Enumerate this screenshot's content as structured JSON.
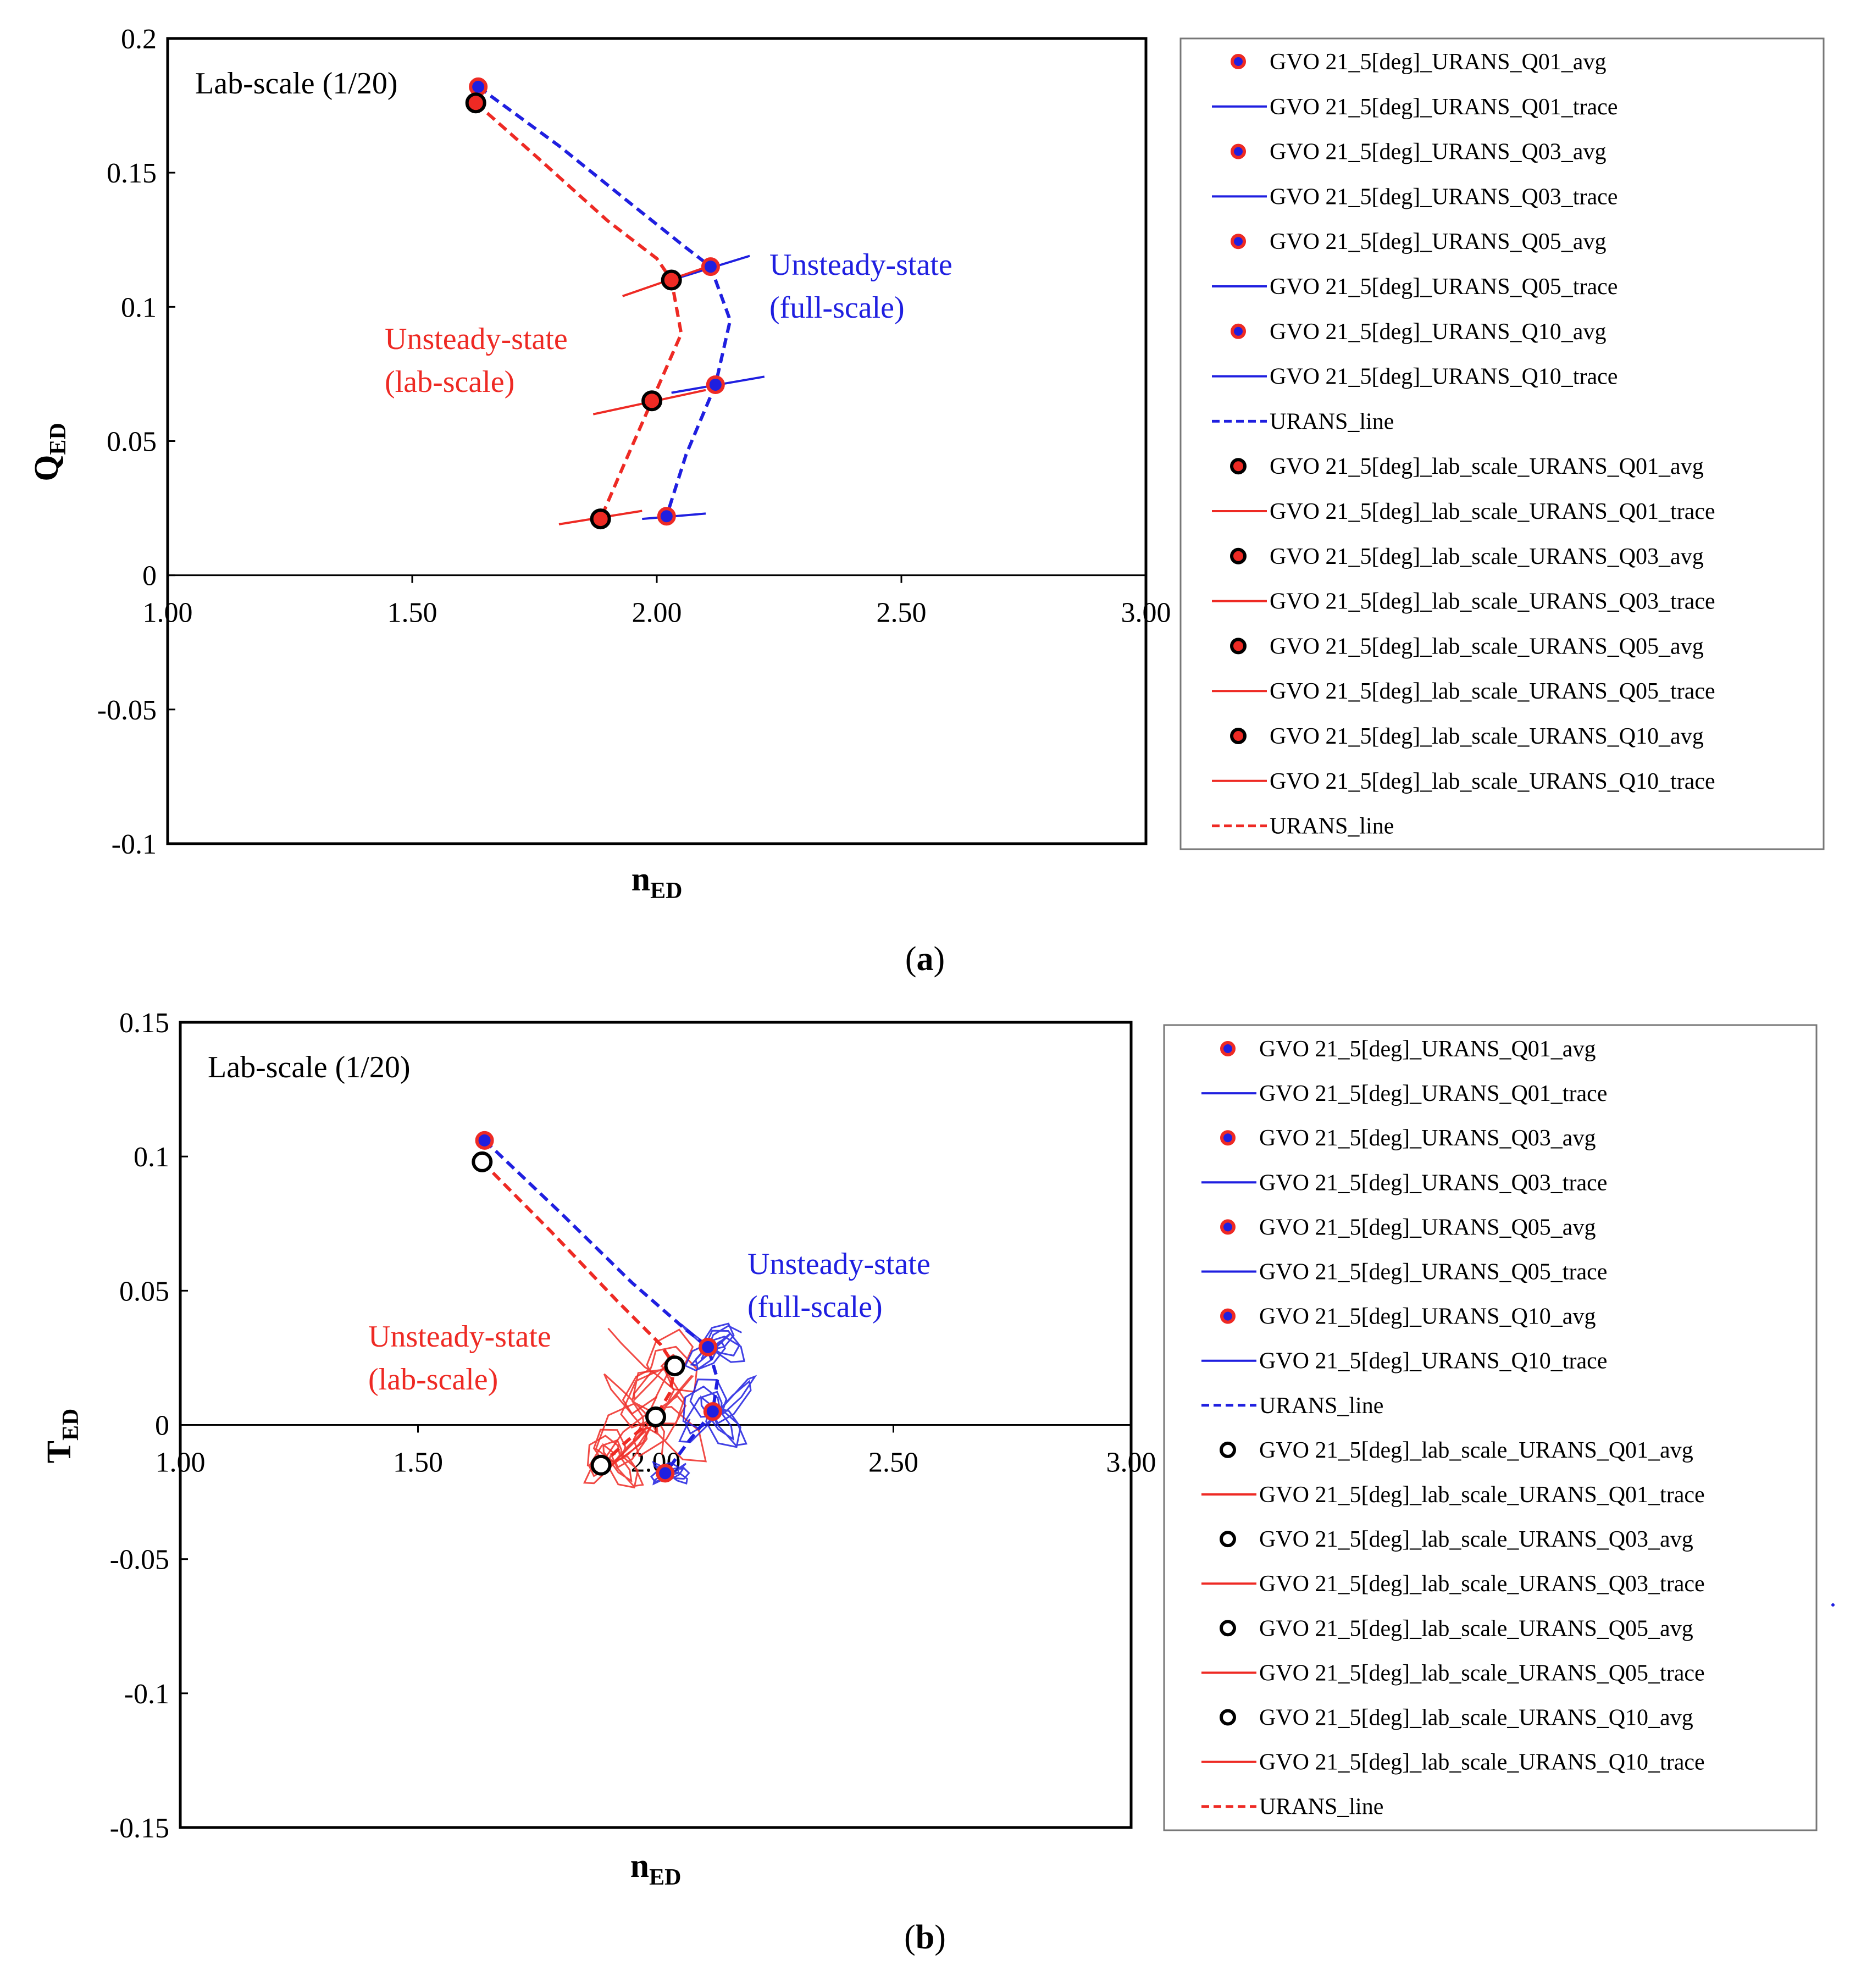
{
  "colors": {
    "full": "#1f1fe0",
    "lab": "#ee2a24",
    "avgFillFull": "#1f1fe0",
    "axis": "#000000"
  },
  "chart_data": [
    {
      "id": "a",
      "type": "line",
      "caption": "a",
      "xlabel": "n",
      "xlabel_sub": "ED",
      "ylabel": "Q",
      "ylabel_sub": "ED",
      "xlim": [
        1.0,
        3.0
      ],
      "ylim": [
        -0.1,
        0.2
      ],
      "xticks": [
        "1.00",
        "1.50",
        "2.00",
        "2.50",
        "3.00"
      ],
      "yticks": [
        "0.2",
        "0.15",
        "0.1",
        "0.05",
        "0",
        "-0.05",
        "-0.1"
      ],
      "corner_note": "Lab-scale (1/20)",
      "annotations": {
        "full": [
          "Unsteady-state",
          "(full-scale)"
        ],
        "lab": [
          "Unsteady-state",
          "(lab-scale)"
        ]
      },
      "full_avg": {
        "x": [
          1.635,
          2.11,
          2.12,
          2.02
        ],
        "y": [
          0.182,
          0.115,
          0.071,
          0.022
        ]
      },
      "lab_avg": {
        "x": [
          1.63,
          2.03,
          1.99,
          1.885
        ],
        "y": [
          0.176,
          0.11,
          0.065,
          0.021
        ]
      },
      "full_line": {
        "x": [
          1.635,
          1.8,
          1.95,
          2.06,
          2.11,
          2.15,
          2.12,
          2.06,
          2.02
        ],
        "y": [
          0.182,
          0.16,
          0.138,
          0.122,
          0.115,
          0.095,
          0.071,
          0.045,
          0.022
        ]
      },
      "lab_line": {
        "x": [
          1.63,
          1.76,
          1.9,
          2.0,
          2.03,
          2.05,
          1.99,
          1.93,
          1.885
        ],
        "y": [
          0.176,
          0.155,
          0.132,
          0.118,
          0.11,
          0.09,
          0.065,
          0.04,
          0.021
        ]
      },
      "full_traces": [
        {
          "x": [
            2.03,
            2.19
          ],
          "y": [
            0.11,
            0.119
          ]
        },
        {
          "x": [
            2.03,
            2.22
          ],
          "y": [
            0.068,
            0.074
          ]
        },
        {
          "x": [
            1.97,
            2.1
          ],
          "y": [
            0.021,
            0.023
          ]
        }
      ],
      "lab_traces": [
        {
          "x": [
            1.93,
            2.12
          ],
          "y": [
            0.104,
            0.116
          ]
        },
        {
          "x": [
            1.87,
            2.1
          ],
          "y": [
            0.06,
            0.069
          ]
        },
        {
          "x": [
            1.8,
            1.97
          ],
          "y": [
            0.019,
            0.024
          ]
        }
      ],
      "legend": [
        {
          "kind": "avg_full",
          "label": "GVO 21_5[deg]_URANS_Q01_avg"
        },
        {
          "kind": "trace_full",
          "label": "GVO 21_5[deg]_URANS_Q01_trace"
        },
        {
          "kind": "avg_full",
          "label": "GVO 21_5[deg]_URANS_Q03_avg"
        },
        {
          "kind": "trace_full",
          "label": "GVO 21_5[deg]_URANS_Q03_trace"
        },
        {
          "kind": "avg_full",
          "label": "GVO 21_5[deg]_URANS_Q05_avg"
        },
        {
          "kind": "trace_full",
          "label": "GVO 21_5[deg]_URANS_Q05_trace"
        },
        {
          "kind": "avg_full",
          "label": "GVO 21_5[deg]_URANS_Q10_avg"
        },
        {
          "kind": "trace_full",
          "label": "GVO 21_5[deg]_URANS_Q10_trace"
        },
        {
          "kind": "line_full",
          "label": "URANS_line"
        },
        {
          "kind": "avg_lab_filled",
          "label": "GVO 21_5[deg]_lab_scale_URANS_Q01_avg"
        },
        {
          "kind": "trace_lab",
          "label": "GVO 21_5[deg]_lab_scale_URANS_Q01_trace"
        },
        {
          "kind": "avg_lab_filled",
          "label": "GVO 21_5[deg]_lab_scale_URANS_Q03_avg"
        },
        {
          "kind": "trace_lab",
          "label": "GVO 21_5[deg]_lab_scale_URANS_Q03_trace"
        },
        {
          "kind": "avg_lab_filled",
          "label": "GVO 21_5[deg]_lab_scale_URANS_Q05_avg"
        },
        {
          "kind": "trace_lab",
          "label": "GVO 21_5[deg]_lab_scale_URANS_Q05_trace"
        },
        {
          "kind": "avg_lab_filled",
          "label": "GVO 21_5[deg]_lab_scale_URANS_Q10_avg"
        },
        {
          "kind": "trace_lab",
          "label": "GVO 21_5[deg]_lab_scale_URANS_Q10_trace"
        },
        {
          "kind": "line_lab",
          "label": "URANS_line"
        }
      ]
    },
    {
      "id": "b",
      "type": "line",
      "caption": "b",
      "xlabel": "n",
      "xlabel_sub": "ED",
      "ylabel": "T",
      "ylabel_sub": "ED",
      "xlim": [
        1.0,
        3.0
      ],
      "ylim": [
        -0.15,
        0.15
      ],
      "xticks": [
        "1.00",
        "1.50",
        "2.00",
        "2.50",
        "3.00"
      ],
      "yticks": [
        "0.15",
        "0.1",
        "0.05",
        "0",
        "-0.05",
        "-0.1",
        "-0.15"
      ],
      "corner_note": "Lab-scale (1/20)",
      "annotations": {
        "full": [
          "Unsteady-state",
          "(full-scale)"
        ],
        "lab": [
          "Unsteady-state",
          "(lab-scale)"
        ]
      },
      "full_avg": {
        "x": [
          1.64,
          2.11,
          2.12,
          2.02
        ],
        "y": [
          0.106,
          0.029,
          0.005,
          -0.018
        ]
      },
      "lab_avg": {
        "x": [
          1.635,
          2.04,
          2.0,
          1.885
        ],
        "y": [
          0.098,
          0.022,
          0.003,
          -0.015
        ]
      },
      "full_line": {
        "x": [
          1.64,
          1.8,
          1.95,
          2.06,
          2.11,
          2.13,
          2.12,
          2.07,
          2.02
        ],
        "y": [
          0.106,
          0.079,
          0.053,
          0.036,
          0.029,
          0.017,
          0.005,
          -0.006,
          -0.018
        ]
      },
      "lab_line": {
        "x": [
          1.635,
          1.78,
          1.92,
          2.01,
          2.04,
          2.03,
          2.0,
          1.94,
          1.885
        ],
        "y": [
          0.098,
          0.072,
          0.046,
          0.03,
          0.022,
          0.012,
          0.003,
          -0.006,
          -0.015
        ]
      },
      "full_traces": [
        {
          "cx": 2.12,
          "cy": 0.029,
          "rx": 0.07,
          "ry": 0.009
        },
        {
          "cx": 2.13,
          "cy": 0.005,
          "rx": 0.08,
          "ry": 0.014
        },
        {
          "cx": 2.03,
          "cy": -0.018,
          "rx": 0.04,
          "ry": 0.004
        }
      ],
      "lab_traces": [
        {
          "cx": 2.0,
          "cy": 0.02,
          "rx": 0.1,
          "ry": 0.016
        },
        {
          "cx": 1.99,
          "cy": 0.003,
          "rx": 0.12,
          "ry": 0.02
        },
        {
          "cx": 1.92,
          "cy": -0.012,
          "rx": 0.07,
          "ry": 0.012
        }
      ],
      "legend": [
        {
          "kind": "avg_full",
          "label": "GVO 21_5[deg]_URANS_Q01_avg"
        },
        {
          "kind": "trace_full",
          "label": "GVO 21_5[deg]_URANS_Q01_trace"
        },
        {
          "kind": "avg_full",
          "label": "GVO 21_5[deg]_URANS_Q03_avg"
        },
        {
          "kind": "trace_full",
          "label": "GVO 21_5[deg]_URANS_Q03_trace"
        },
        {
          "kind": "avg_full",
          "label": "GVO 21_5[deg]_URANS_Q05_avg"
        },
        {
          "kind": "trace_full",
          "label": "GVO 21_5[deg]_URANS_Q05_trace"
        },
        {
          "kind": "avg_full",
          "label": "GVO 21_5[deg]_URANS_Q10_avg"
        },
        {
          "kind": "trace_full",
          "label": "GVO 21_5[deg]_URANS_Q10_trace"
        },
        {
          "kind": "line_full",
          "label": "URANS_line"
        },
        {
          "kind": "avg_lab_open",
          "label": "GVO 21_5[deg]_lab_scale_URANS_Q01_avg"
        },
        {
          "kind": "trace_lab",
          "label": "GVO 21_5[deg]_lab_scale_URANS_Q01_trace"
        },
        {
          "kind": "avg_lab_open",
          "label": "GVO 21_5[deg]_lab_scale_URANS_Q03_avg"
        },
        {
          "kind": "trace_lab",
          "label": "GVO 21_5[deg]_lab_scale_URANS_Q03_trace"
        },
        {
          "kind": "avg_lab_open",
          "label": "GVO 21_5[deg]_lab_scale_URANS_Q05_avg"
        },
        {
          "kind": "trace_lab",
          "label": "GVO 21_5[deg]_lab_scale_URANS_Q05_trace"
        },
        {
          "kind": "avg_lab_open",
          "label": "GVO 21_5[deg]_lab_scale_URANS_Q10_avg"
        },
        {
          "kind": "trace_lab",
          "label": "GVO 21_5[deg]_lab_scale_URANS_Q10_trace"
        },
        {
          "kind": "line_lab",
          "label": "URANS_line"
        }
      ]
    }
  ]
}
